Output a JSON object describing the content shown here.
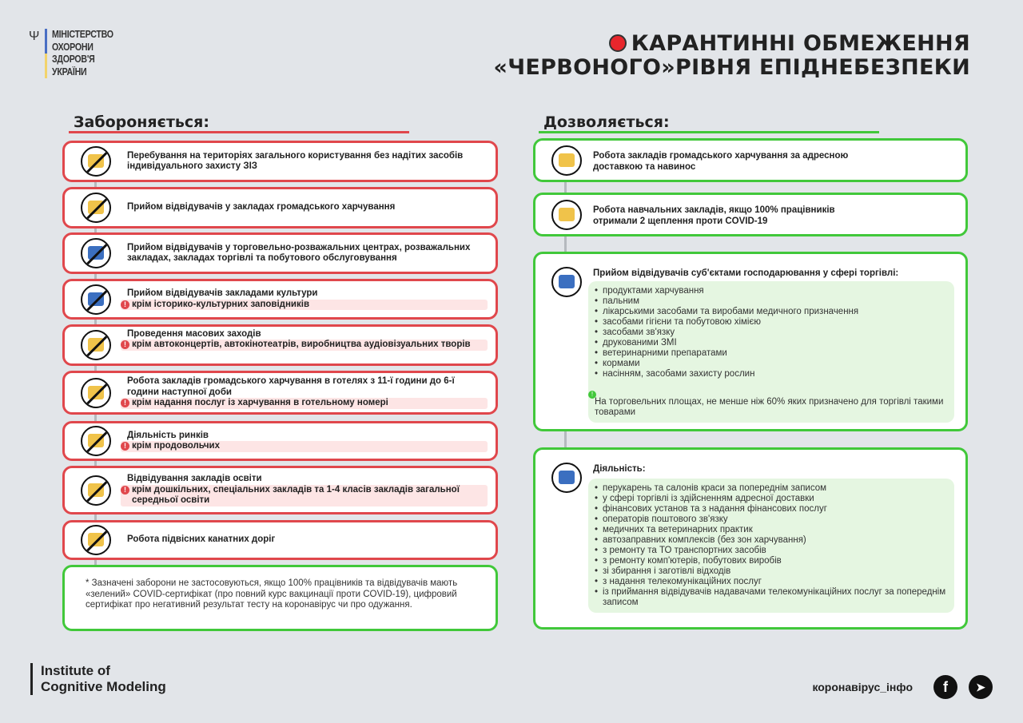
{
  "header": {
    "ministry_lines": [
      "МІНІСТЕРСТВО",
      "ОХОРОНИ",
      "ЗДОРОВ'Я",
      "УКРАЇНИ"
    ],
    "title_line1": "КАРАНТИННІ ОБМЕЖЕННЯ",
    "title_line2": "«ЧЕРВОНОГО»РІВНЯ ЕПІДНЕБЕЗПЕКИ"
  },
  "colors": {
    "forbidden": "#e0474c",
    "allowed": "#41c83a",
    "background": "#e2e5e9",
    "status_dot": "#e8262c"
  },
  "forbidden": {
    "heading": "Забороняється:",
    "items": [
      {
        "icon": "no-mask-icon",
        "text": "Перебування на територіях загального користування без надітих засобів індивідуального захисту  ЗІЗ",
        "exception": ""
      },
      {
        "icon": "no-restaurant-icon",
        "text": "Прийом відвідувачів у закладах громадського харчування",
        "exception": ""
      },
      {
        "icon": "no-shopping-center-icon",
        "text": "Прийом відвідувачів у торговельно-розважальних центрах, розважальних закладах, закладах торгівлі та побутового обслуговування",
        "exception": ""
      },
      {
        "icon": "no-culture-icon",
        "text": "Прийом відвідувачів закладами культури",
        "exception": "крім історико-культурних заповідників"
      },
      {
        "icon": "no-mass-events-icon",
        "text": "Проведення масових заходів",
        "exception": "крім автоконцертів, автокінотеатрів, виробництва аудіовізуальних творів"
      },
      {
        "icon": "no-hotel-food-icon",
        "text": "Робота закладів громадського харчування в готелях з 11-ї години до 6-ї години наступної доби",
        "exception": "крім надання послуг із харчування в готельному номері"
      },
      {
        "icon": "no-market-icon",
        "text": "Діяльність ринків",
        "exception": "крім продовольчих"
      },
      {
        "icon": "no-education-icon",
        "text": "Відвідування закладів освіти",
        "exception": "крім дошкільних, спеціальних закладів та 1-4 класів закладів загальної середньої освіти"
      },
      {
        "icon": "no-cable-car-icon",
        "text": "Робота підвісних канатних доріг",
        "exception": ""
      }
    ],
    "note": "* Зазначені заборони не застосовуються, якщо 100% працівників та відвідувачів мають «зелений» COVID-сертифікат (про повний курс вакцинації проти COVID-19), цифровий сертифікат про негативний результат тесту на коронавірус чи про одужання."
  },
  "allowed": {
    "heading": "Дозволяється:",
    "items": [
      {
        "icon": "restaurant-icon",
        "text": "Робота закладів громадського харчування за адресною доставкою та навинос"
      },
      {
        "icon": "book-icon",
        "text": "Робота навчальних закладів, якщо 100% працівників отримали 2 щеплення проти COVID-19"
      }
    ],
    "trade": {
      "icon": "shop-icon",
      "title": "Прийом відвідувачів суб'єктами господарювання у сфері торгівлі:",
      "list": [
        "продуктами харчування",
        "пальним",
        "лікарськими засобами та виробами медичного призначення",
        "засобами гігієни та побутовою хімією",
        "засобами зв'язку",
        "друкованими ЗМІ",
        "ветеринарними препаратами",
        "кормами",
        "насінням, засобами захисту рослин"
      ],
      "note": "На торговельних площах, не менше ніж 60% яких призначено для торгівлі такими товарами"
    },
    "activity": {
      "icon": "worker-icon",
      "title": "Діяльність:",
      "list": [
        "перукарень та салонів краси за попереднім записом",
        "у сфері торгівлі із здійсненням адресної доставки",
        "фінансових установ та з надання фінансових послуг",
        "операторів поштового зв'язку",
        "медичних та ветеринарних практик",
        "автозаправних комплексів (без зон харчування)",
        "з ремонту та ТО транспортних засобів",
        "з ремонту комп'ютерів, побутових виробів",
        "зі збирання і заготівлі відходів",
        "з надання телекомунікаційних послуг",
        "із приймання відвідувачів надавачами телекомунікаційних послуг за попереднім записом"
      ]
    }
  },
  "footer": {
    "brand_line1": "Institute of",
    "brand_line2": "Cognitive Modeling",
    "site": "коронавірус_інфо",
    "social": [
      "facebook-icon",
      "telegram-icon"
    ]
  }
}
